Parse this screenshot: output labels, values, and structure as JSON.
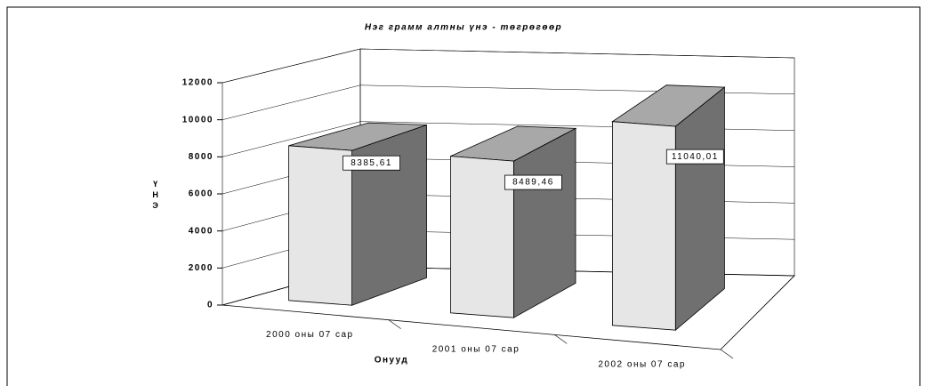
{
  "chart_data": {
    "type": "bar3d",
    "title": "Нэг грамм алтны үнэ - төгрөгөөр",
    "ylabel": "ҮНЭ",
    "xlabel": "Онууд",
    "categories": [
      "2000 оны 07 сар",
      "2001 оны 07 сар",
      "2002 оны 07 сар"
    ],
    "values": [
      8385.61,
      8489.46,
      11040.01
    ],
    "value_labels": [
      "8385,61",
      "8489,46",
      "11040,01"
    ],
    "ylim": [
      0,
      12000
    ],
    "yticks": [
      0,
      2000,
      4000,
      6000,
      8000,
      10000,
      12000
    ],
    "grid": true,
    "colors": {
      "front": "#e6e6e6",
      "side": "#707070",
      "top": "#a8a8a8"
    }
  }
}
